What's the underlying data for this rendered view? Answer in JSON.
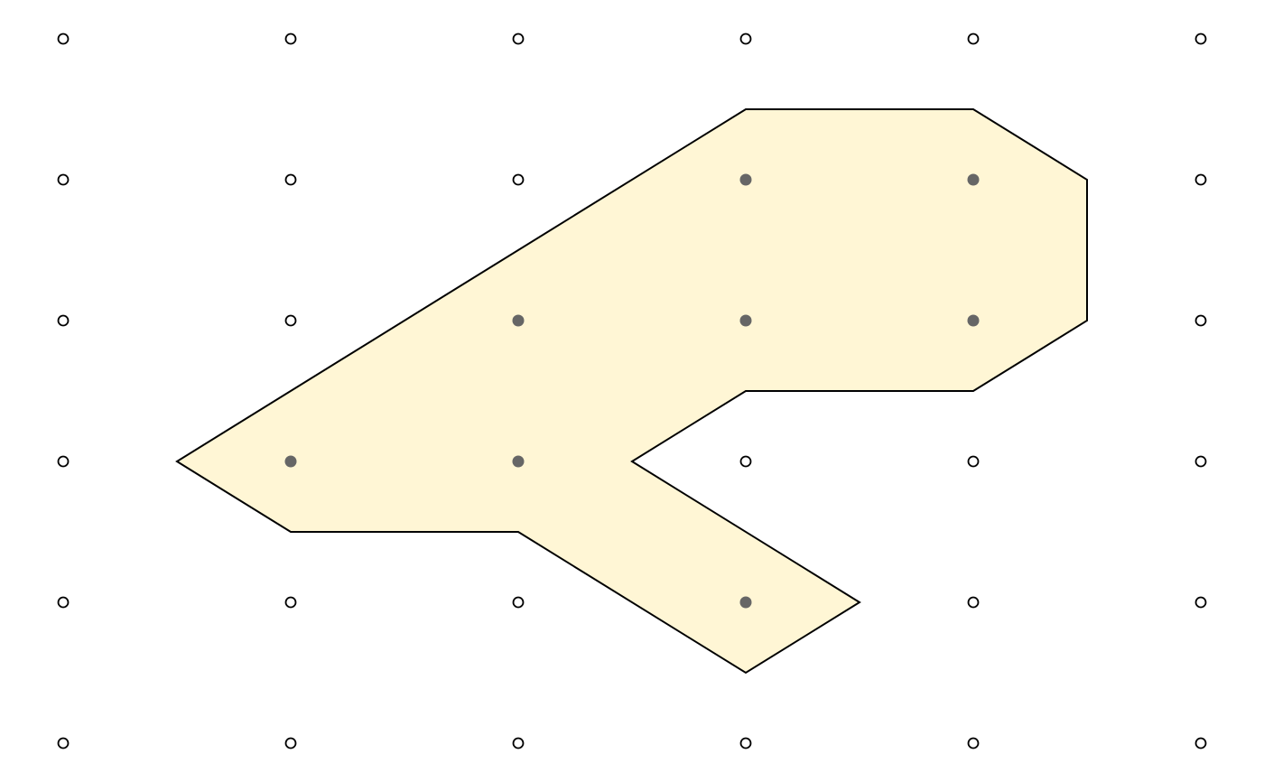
{
  "diagram": {
    "type": "lattice-polygon",
    "grid": {
      "columns": 6,
      "rows": 6,
      "point_style": "hollow-circle",
      "point_color": "#000000"
    },
    "polygon": {
      "fill": "#fff6d5",
      "stroke": "#000000",
      "vertices": [
        [
          3,
          0.5
        ],
        [
          4,
          0.5
        ],
        [
          4.5,
          1
        ],
        [
          4.5,
          2
        ],
        [
          4,
          2.5
        ],
        [
          3,
          2.5
        ],
        [
          2.5,
          3
        ],
        [
          3.5,
          4
        ],
        [
          3,
          4.5
        ],
        [
          2,
          3.5
        ],
        [
          1,
          3.5
        ],
        [
          0.5,
          3
        ],
        [
          3,
          0.5
        ]
      ]
    },
    "interior_points": {
      "color": "#666666",
      "points": [
        [
          3,
          1
        ],
        [
          4,
          1
        ],
        [
          2,
          2
        ],
        [
          3,
          2
        ],
        [
          4,
          2
        ],
        [
          1,
          3
        ],
        [
          2,
          3
        ],
        [
          3,
          4
        ]
      ]
    }
  }
}
